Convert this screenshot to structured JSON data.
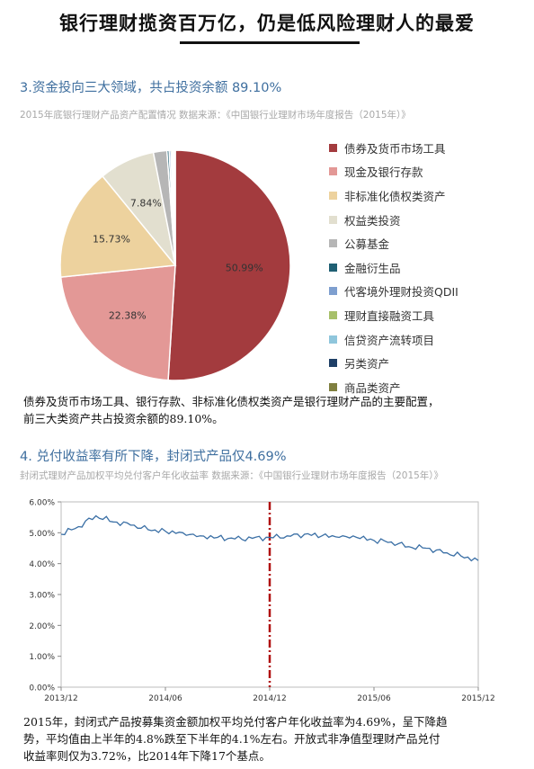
{
  "page": {
    "title": "银行理财揽资百万亿，仍是低风险理财人的最爱"
  },
  "section3": {
    "title": "3.资金投向三大领域，共占投资余额 89.10%",
    "subtitle": "2015年底银行理财产品资产配置情况   数据来源：《中国银行业理财市场年度报告（2015年）》",
    "paragraph_line1": "债券及货币市场工具、银行存款、非标准化债权类资产是银行理财产品的主要配置，",
    "paragraph_line2": "前三大类资产共占投资余额的89.10%。"
  },
  "section4": {
    "title": "4. 兑付收益率有所下降，封闭式产品仅4.69%",
    "subtitle": "封闭式理财产品加权平均兑付客户年化收益率   数据来源：《中国银行业理财市场年度报告（2015年）》",
    "paragraph_line1": "2015年，封闭式产品按募集资金额加权平均兑付客户年化收益率为4.69%，呈下降趋",
    "paragraph_line2": "势，平均值由上半年的4.8%跌至下半年的4.1%左右。开放式非净值型理财产品兑付",
    "paragraph_line3": "收益率则仅为3.72%，比2014年下降17个基点。"
  },
  "chart_data": [
    {
      "type": "pie",
      "start_angle_deg": 0,
      "direction": "clockwise",
      "slices": [
        {
          "label": "债券及货币市场工具",
          "value": 50.99,
          "value_label": "50.99%",
          "color": "#a33b3e"
        },
        {
          "label": "现金及银行存款",
          "value": 22.38,
          "value_label": "22.38%",
          "color": "#e39896"
        },
        {
          "label": "非标准化债权类资产",
          "value": 15.73,
          "value_label": "15.73%",
          "color": "#edd29e"
        },
        {
          "label": "权益类投资",
          "value": 7.84,
          "value_label": "7.84%",
          "color": "#e2dfcf"
        },
        {
          "label": "公募基金",
          "value": 1.9,
          "value_label": "",
          "color": "#b6b6b6"
        },
        {
          "label": "金融衍生品",
          "value": 0.3,
          "value_label": "",
          "color": "#1f5f73"
        },
        {
          "label": "代客境外理财投资QDII",
          "value": 0.25,
          "value_label": "",
          "color": "#7e9fcf"
        },
        {
          "label": "理财直接融资工具",
          "value": 0.2,
          "value_label": "",
          "color": "#a7c06a"
        },
        {
          "label": "信贷资产流转项目",
          "value": 0.2,
          "value_label": "",
          "color": "#8fc6dc"
        },
        {
          "label": "另类资产",
          "value": 0.11,
          "value_label": "",
          "color": "#1e3f66"
        },
        {
          "label": "商品类资产",
          "value": 0.1,
          "value_label": "",
          "color": "#7f7f3f"
        }
      ]
    },
    {
      "type": "line",
      "series": [
        {
          "color": "#3a6fa5",
          "x": [
            "2013-12",
            "2014-01",
            "2014-02",
            "2014-03",
            "2014-04",
            "2014-05",
            "2014-06",
            "2014-07",
            "2014-08",
            "2014-09",
            "2014-10",
            "2014-11",
            "2014-12",
            "2015-01",
            "2015-02",
            "2015-03",
            "2015-04",
            "2015-05",
            "2015-06",
            "2015-07",
            "2015-08",
            "2015-09",
            "2015-10",
            "2015-11",
            "2015-12"
          ],
          "y": [
            4.95,
            5.2,
            5.55,
            5.35,
            5.25,
            5.1,
            5.05,
            5.0,
            4.9,
            4.85,
            4.8,
            4.82,
            4.85,
            4.9,
            4.95,
            4.9,
            4.85,
            4.85,
            4.75,
            4.7,
            4.55,
            4.5,
            4.35,
            4.25,
            4.1
          ]
        }
      ],
      "x_ticks": [
        "2013/12",
        "2014/06",
        "2014/12",
        "2015/06",
        "2015/12"
      ],
      "y_ticks": [
        "0.00%",
        "1.00%",
        "2.00%",
        "3.00%",
        "4.00%",
        "5.00%",
        "6.00%"
      ],
      "ylim": [
        0,
        6
      ],
      "vertical_marker": {
        "x": "2014-12",
        "color": "#b01010",
        "style": "dash-dot"
      }
    }
  ]
}
